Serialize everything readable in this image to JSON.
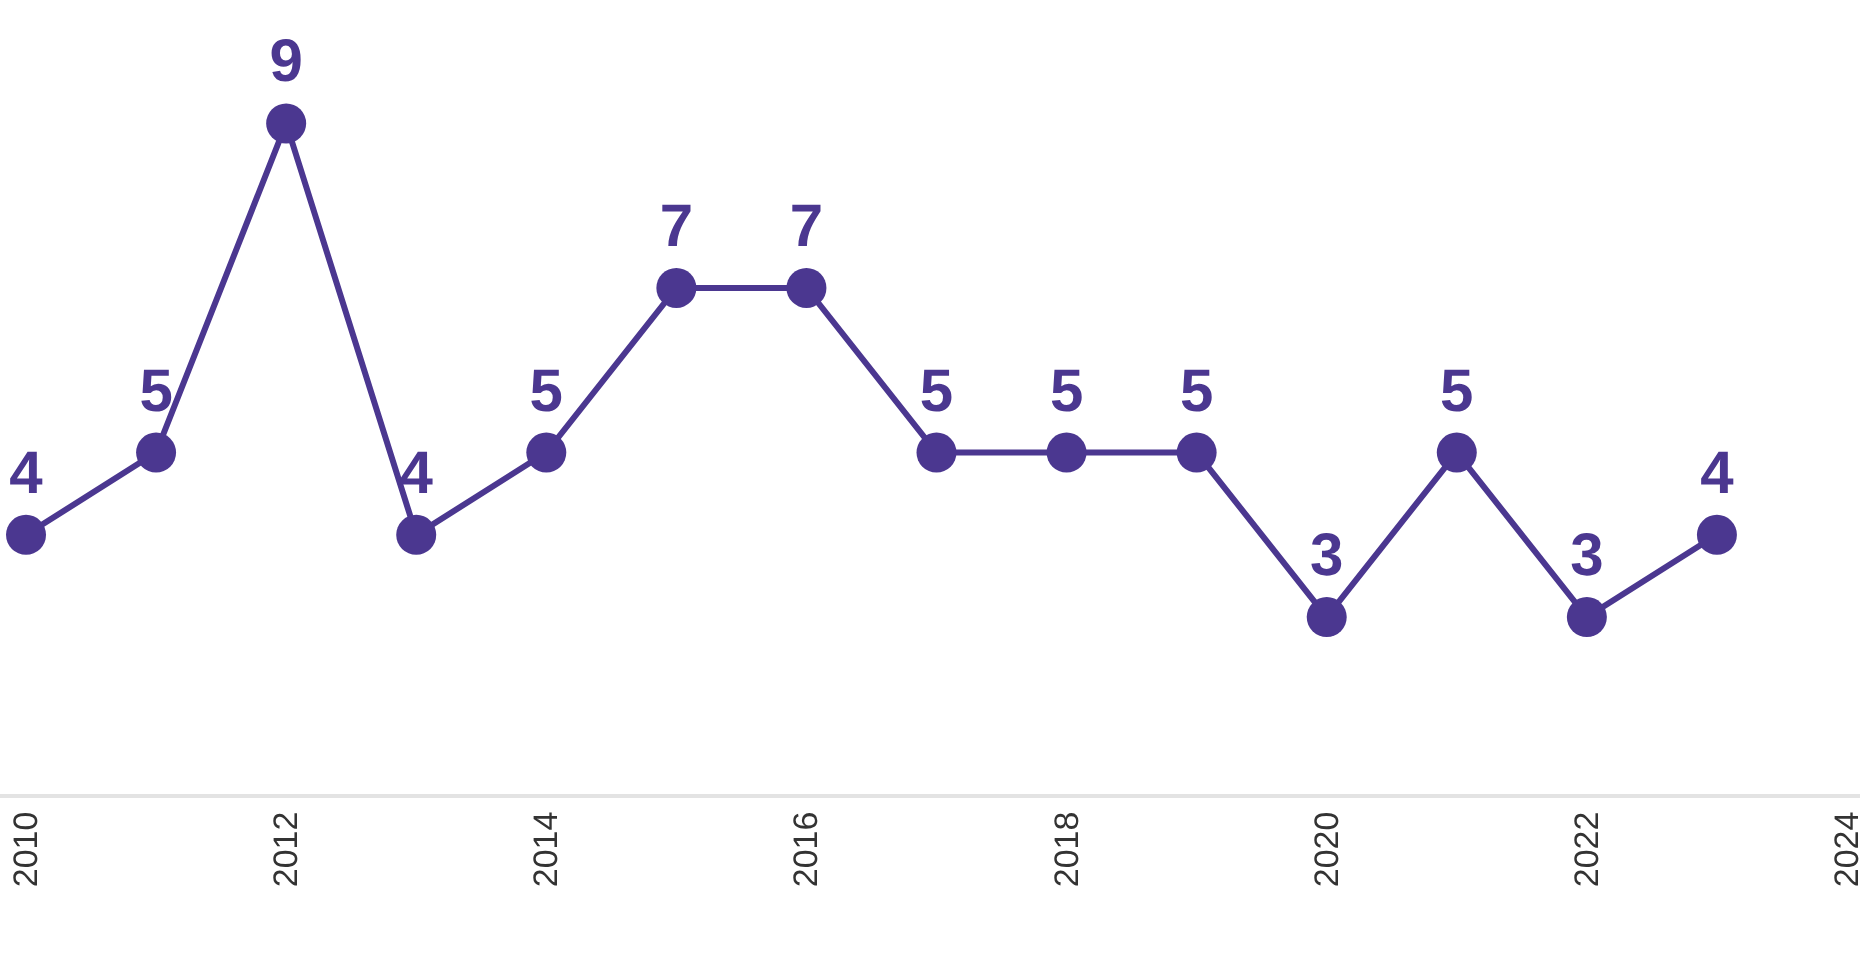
{
  "chart_data": {
    "type": "line",
    "x": [
      2010,
      2011,
      2012,
      2013,
      2014,
      2015,
      2016,
      2017,
      2018,
      2019,
      2020,
      2021,
      2022,
      2023
    ],
    "values": [
      4,
      5,
      9,
      4,
      5,
      7,
      7,
      5,
      5,
      5,
      3,
      5,
      3,
      4
    ],
    "color": "#4b3790",
    "marker": "circle",
    "line_style": "solid",
    "data_labels": true,
    "xlim": [
      2009.8,
      2024.1
    ],
    "xticks": [
      2010,
      2012,
      2014,
      2016,
      2018,
      2020,
      2022,
      2024
    ],
    "ylim": [
      0.85,
      10.5
    ],
    "tick_labels": "x"
  }
}
